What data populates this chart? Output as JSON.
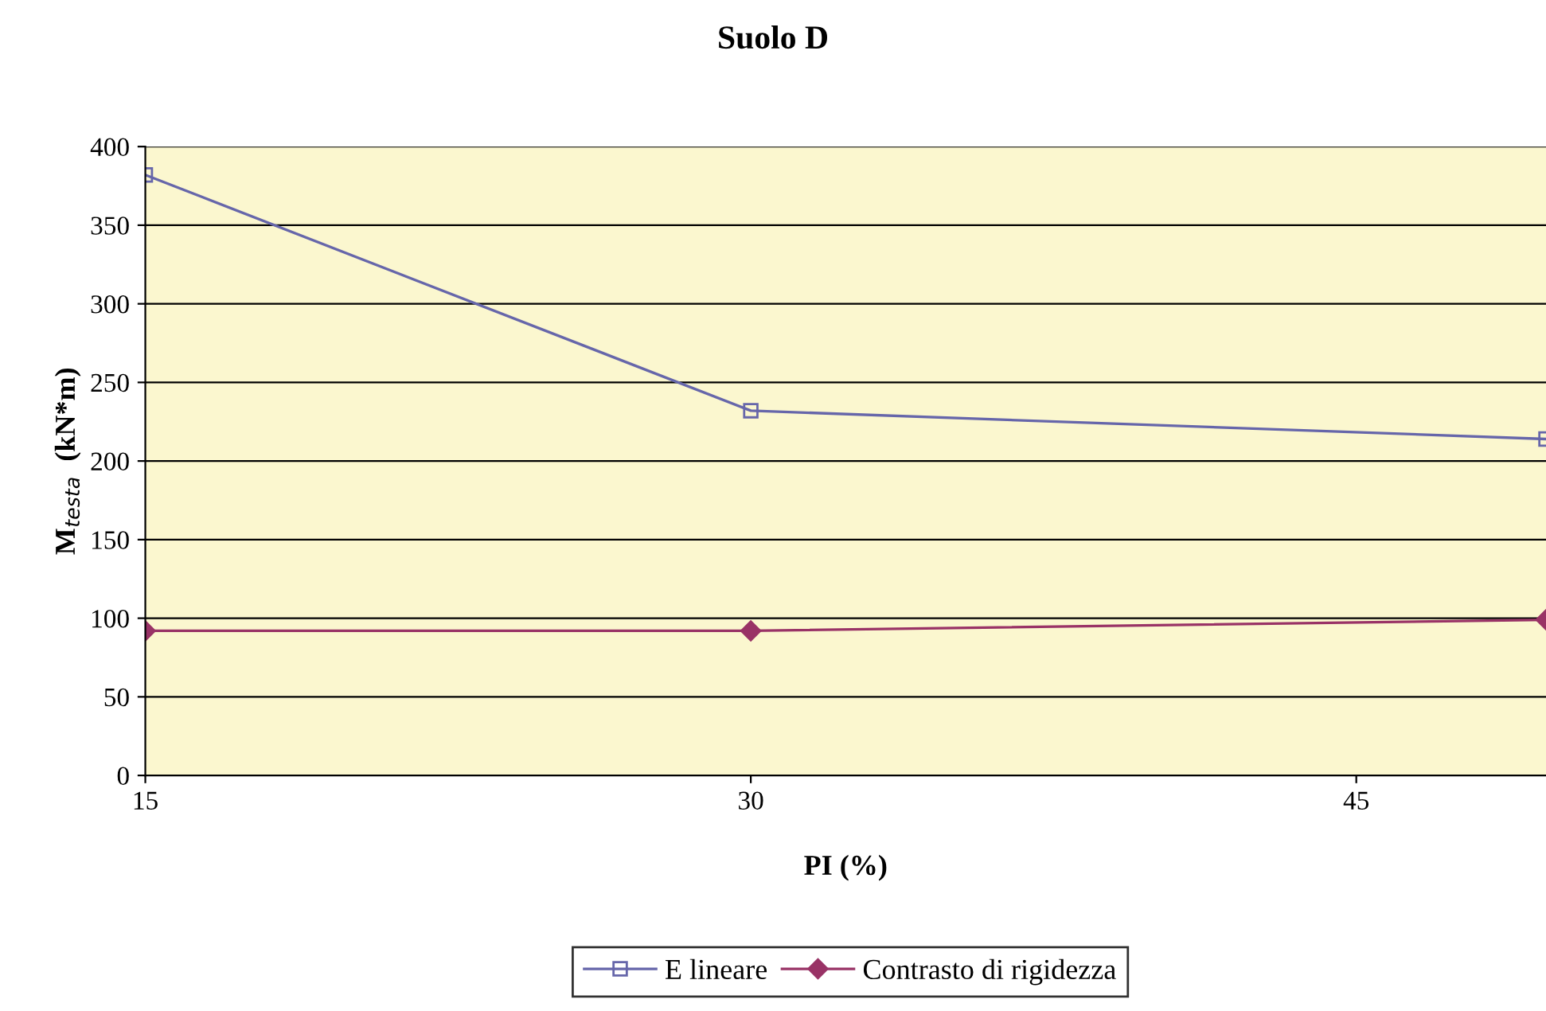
{
  "chart_data": {
    "type": "line",
    "title": "Suolo D",
    "xlabel": "PI (%)",
    "ylabel": "M$_{testa}$  (kN*m)",
    "x": [
      15,
      30,
      49.7
    ],
    "series": [
      {
        "name": "E lineare",
        "color": "#6666aa",
        "values": [
          382,
          232,
          214
        ],
        "marker": "square"
      },
      {
        "name": "Contrasto di rigidezza",
        "color": "#993366",
        "values": [
          92,
          92,
          99
        ],
        "marker": "diamond"
      }
    ],
    "xlim": [
      15,
      49.7
    ],
    "xticks": [
      15,
      30,
      45
    ],
    "ylim": [
      0,
      400
    ],
    "yticks": [
      0,
      50,
      100,
      150,
      200,
      250,
      300,
      350,
      400
    ],
    "grid": "y",
    "legend": "bottom",
    "line_style": "solid"
  }
}
